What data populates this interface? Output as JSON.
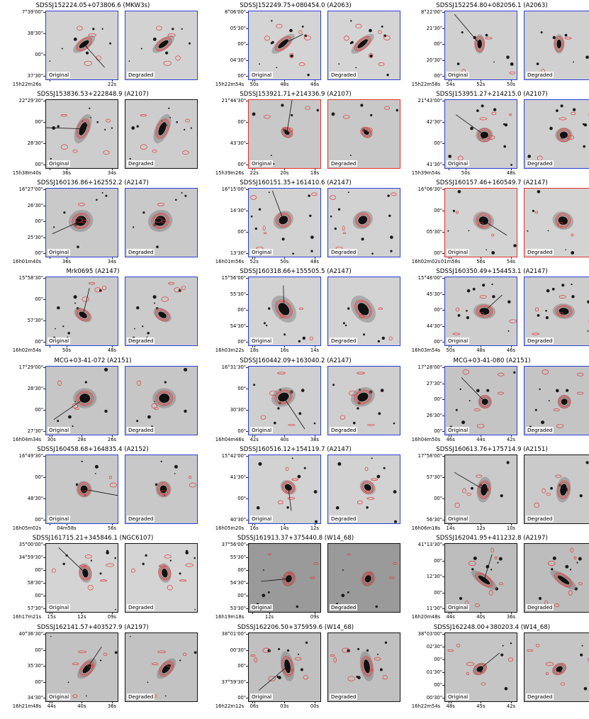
{
  "labels": {
    "original": "Original",
    "degraded": "Degraded"
  },
  "colors": {
    "blue_frame": "#2b3ed6",
    "red_frame": "#e3312c",
    "black_frame": "#111111",
    "contour": "#e03a3a"
  },
  "panels": [
    {
      "title": "SDSSJ152224.05+073806.6 (MKW3s)",
      "frame": "blue",
      "bg": "#d2d2d2",
      "yticks": [
        "7°39'00\"",
        "38'30\"",
        "00\"",
        "37'30\""
      ],
      "xticks": [
        "15h22m26s",
        "22s"
      ]
    },
    {
      "title": "SDSSJ152249.75+080454.0 (A2063)",
      "frame": "blue",
      "bg": "#d4d4d4",
      "yticks": [
        "8°06'00\"",
        "05'30\"",
        "00\"",
        "04'30\"",
        "00\""
      ],
      "xticks": [
        "15h22m54s",
        "50s",
        "48s",
        "46s"
      ]
    },
    {
      "title": "SDSSJ152254.80+082056.1 (A2063)",
      "frame": "blue",
      "bg": "#d0d0d0",
      "yticks": [
        "8°22'00\"",
        "21'30\"",
        "00\"",
        "20'30\"",
        "00\""
      ],
      "xticks": [
        "15h22m58s",
        "54s",
        "52s",
        "50s"
      ]
    },
    {
      "title": "SDSSJ153836.53+222848.9 (A2107)",
      "frame": "black",
      "bg": "#cdcdcd",
      "yticks": [
        "22°29'30\"",
        "00\"",
        "28'30\"",
        "00\""
      ],
      "xticks": [
        "15h38m40s",
        "36s",
        "34s"
      ]
    },
    {
      "title": "SDSSJ153921.71+214336.9 (A2107)",
      "frame": "red",
      "bg": "#c8c8c8",
      "yticks": [
        "21°44'30\"",
        "00\"",
        "43'30\"",
        "00\""
      ],
      "xticks": [
        "15h39m26s",
        "22s",
        "20s",
        "18s"
      ]
    },
    {
      "title": "SDSSJ153951.27+214215.0 (A2107)",
      "frame": "blue",
      "bg": "#cfcfcf",
      "yticks": [
        "21°43'00\"",
        "42'30\"",
        "00\"",
        "41'30\""
      ],
      "xticks": [
        "15h39m54s",
        "50s",
        "48s"
      ]
    },
    {
      "title": "SDSSJ160136.86+162552.2 (A2147)",
      "frame": "blue",
      "bg": "#c9c9c9",
      "yticks": [
        "16°27'00\"",
        "26'30\"",
        "00\"",
        "25'30\"",
        "00\""
      ],
      "xticks": [
        "16h01m40s",
        "36s",
        "34s"
      ]
    },
    {
      "title": "SDSSJ160151.35+161410.6 (A2147)",
      "frame": "blue",
      "bg": "#d2d2d2",
      "yticks": [
        "16°15'00\"",
        "14'30\"",
        "00\"",
        "13'30\""
      ],
      "xticks": [
        "16h01m56s",
        "52s",
        "50s",
        "48s"
      ]
    },
    {
      "title": "SDSSJ160157.46+160549.7 (A2147)",
      "frame": "red",
      "bg": "#d3d3d3",
      "yticks": [
        "16°06'30\"",
        "00\"",
        "05'30\"",
        "00\""
      ],
      "xticks": [
        "16h02m02s",
        "01m58s",
        "56s",
        "54s"
      ]
    },
    {
      "title": "Mrk0695 (A2147)",
      "frame": "blue",
      "bg": "#cbcbcb",
      "yticks": [
        "15°58'30\"",
        "00\"",
        "57'30\"",
        "00\""
      ],
      "xticks": [
        "16h02m54s",
        "50s",
        "48s"
      ]
    },
    {
      "title": "SDSSJ160318.66+155505.5 (A2147)",
      "frame": "blue",
      "bg": "#d3d3d3",
      "yticks": [
        "15°56'00\"",
        "55'30\"",
        "00\"",
        "54'30\"",
        "00\""
      ],
      "xticks": [
        "16h03m22s",
        "18s",
        "16s",
        "14s"
      ]
    },
    {
      "title": "SDSSJ160350.49+154453.1 (A2147)",
      "frame": "blue",
      "bg": "#cdcdcd",
      "yticks": [
        "15°46'00\"",
        "45'30\"",
        "00\"",
        "44'30\"",
        "00\""
      ],
      "xticks": [
        "16h03m54s",
        "50s",
        "48s",
        "46s"
      ]
    },
    {
      "title": "MCG+03-41-072 (A2151)",
      "frame": "blue",
      "bg": "#c6c6c6",
      "yticks": [
        "17°29'00\"",
        "28'30\"",
        "00\"",
        "27'30\""
      ],
      "xticks": [
        "16h04m34s",
        "30s",
        "28s",
        "26s"
      ]
    },
    {
      "title": "SDSSJ160442.09+163040.2 (A2147)",
      "frame": "blue",
      "bg": "#cfcfcf",
      "yticks": [
        "16°31'30\"",
        "00\"",
        "30'30\"",
        "00\""
      ],
      "xticks": [
        "16h04m46s",
        "42s",
        "40s",
        "38s"
      ]
    },
    {
      "title": "MCG+03-41-080 (A2151)",
      "frame": "blue",
      "bg": "#c4c4c4",
      "yticks": [
        "17°28'00\"",
        "27'30\"",
        "00\"",
        "26'30\"",
        "00\""
      ],
      "xticks": [
        "16h04m50s",
        "46s",
        "44s",
        "42s"
      ]
    },
    {
      "title": "SDSSJ160458.68+164835.4 (A2152)",
      "frame": "blue",
      "bg": "#c8c8c8",
      "yticks": [
        "16°49'30\"",
        "00\"",
        "48'30\"",
        "00\""
      ],
      "xticks": [
        "16h05m02s",
        "04m58s",
        "56s"
      ]
    },
    {
      "title": "SDSSJ160516.12+154119.7 (A2147)",
      "frame": "blue",
      "bg": "#d2d2d2",
      "yticks": [
        "15°42'00\"",
        "41'30\"",
        "00\"",
        "40'30\""
      ],
      "xticks": [
        "16h05m20s",
        "16s",
        "14s",
        "12s"
      ]
    },
    {
      "title": "SDSSJ160613.76+175714.9 (A2151)",
      "frame": "black",
      "bg": "#cacaca",
      "yticks": [
        "17°58'00\"",
        "57'30\"",
        "00\"",
        "56'30\""
      ],
      "xticks": [
        "16h06m18s",
        "14s",
        "12s",
        "10s"
      ]
    },
    {
      "title": "SDSSJ161715.21+345846.1 (NGC6107)",
      "frame": "black",
      "bg": "#d4d4d4",
      "yticks": [
        "35°00'00\"",
        "34°59'30\"",
        "00\"",
        "58'30\"",
        "00\"",
        "57'30\""
      ],
      "xticks": [
        "16h17m21s",
        "15s",
        "12s",
        "09s"
      ]
    },
    {
      "title": "SDSSJ161913.37+375440.8 (W14_68)",
      "frame": "black",
      "bg": "#9a9a9a",
      "yticks": [
        "37°56'00\"",
        "55'30\"",
        "00\"",
        "54'30\"",
        "00\"",
        "53'30\""
      ],
      "xticks": [
        "16h19m18s",
        "12s",
        "09s"
      ]
    },
    {
      "title": "SDSSJ162041.95+411232.8 (A2197)",
      "frame": "black",
      "bg": "#bdbdbd",
      "yticks": [
        "41°13'30\"",
        "00\"",
        "12'30\"",
        "00\"",
        "11'30\""
      ],
      "xticks": [
        "16h20m48s",
        "44s",
        "40s",
        "36s"
      ]
    },
    {
      "title": "SDSSJ162141.57+403527.9 (A2197)",
      "frame": "black",
      "bg": "#c2c2c2",
      "yticks": [
        "40°36'30\"",
        "00\"",
        "35'30\"",
        "00\"",
        "34'30\""
      ],
      "xticks": [
        "16h21m48s",
        "44s",
        "40s",
        "36s"
      ]
    },
    {
      "title": "SDSSJ162206.50+375959.6 (W14_68)",
      "frame": "black",
      "bg": "#c0c0c0",
      "yticks": [
        "38°01'00\"",
        "00'30\"",
        "00\"",
        "37°59'30\"",
        "00\""
      ],
      "xticks": [
        "16h22m12s",
        "06s",
        "03s",
        "00s"
      ]
    },
    {
      "title": "SDSSJ162248.00+380203.4 (W14_68)",
      "frame": "black",
      "bg": "#c5c5c5",
      "yticks": [
        "38°03'00\"",
        "02'30\"",
        "00\"",
        "01'30\"",
        "00\"",
        "00'30\""
      ],
      "xticks": [
        "16h22m54s",
        "48s",
        "45s",
        "42s"
      ]
    }
  ]
}
